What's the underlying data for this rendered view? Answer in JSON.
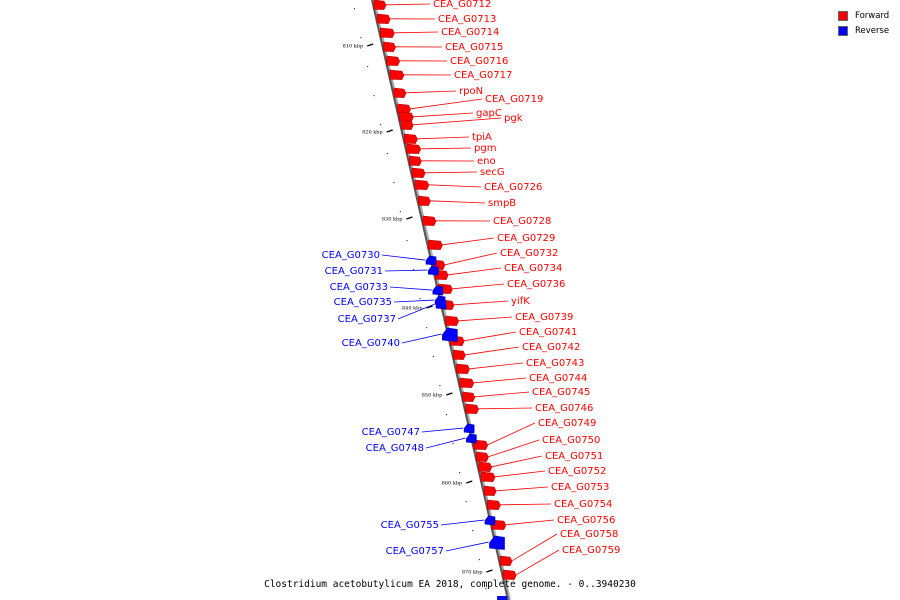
{
  "legend": {
    "forward_label": "Forward",
    "reverse_label": "Reverse",
    "forward_color": "#ff0000",
    "reverse_color": "#0000ff"
  },
  "caption": "Clostridium acetobutylicum EA 2018, complete genome. - 0..3940230",
  "scale": {
    "ticks": [
      "810 kbp",
      "820 kbp",
      "830 kbp",
      "840 kbp",
      "850 kbp",
      "860 kbp",
      "870 kbp"
    ]
  },
  "genes": {
    "forward": [
      "CEA_G0712",
      "CEA_G0713",
      "CEA_G0714",
      "CEA_G0715",
      "CEA_G0716",
      "CEA_G0717",
      "rpoN",
      "CEA_G0719",
      "gapC",
      "pgk",
      "tpiA",
      "pgm",
      "eno",
      "secG",
      "CEA_G0726",
      "smpB",
      "CEA_G0728",
      "CEA_G0729",
      "CEA_G0732",
      "CEA_G0734",
      "CEA_G0736",
      "yifK",
      "CEA_G0739",
      "CEA_G0741",
      "CEA_G0742",
      "CEA_G0743",
      "CEA_G0744",
      "CEA_G0745",
      "CEA_G0746",
      "CEA_G0749",
      "CEA_G0750",
      "CEA_G0751",
      "CEA_G0752",
      "CEA_G0753",
      "CEA_G0754",
      "CEA_G0756",
      "CEA_G0758",
      "CEA_G0759"
    ],
    "reverse": [
      "CEA_G0730",
      "CEA_G0731",
      "CEA_G0733",
      "CEA_G0735",
      "CEA_G0737",
      "CEA_G0740",
      "CEA_G0747",
      "CEA_G0748",
      "CEA_G0755",
      "CEA_G0757"
    ]
  }
}
